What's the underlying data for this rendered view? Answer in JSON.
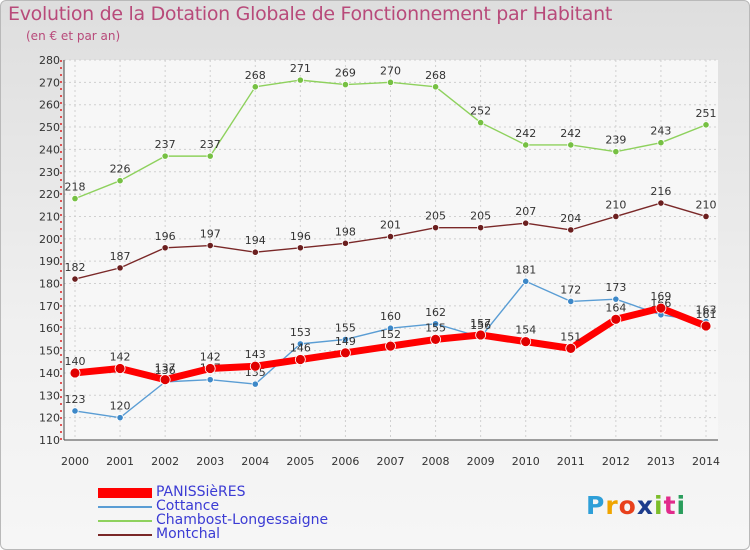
{
  "title": "Evolution de la Dotation Globale de Fonctionnement par Habitant",
  "subtitle": "(en € et par an)",
  "brand": "Proxiti",
  "brand_colors": [
    "#2e9fd8",
    "#f0a500",
    "#e8401c",
    "#1d3c8c",
    "#7cbd2a",
    "#e12b8b",
    "#2a9d5c"
  ],
  "chart_data": {
    "type": "line",
    "title": "Evolution de la Dotation Globale de Fonctionnement par Habitant",
    "subtitle": "(en € et par an)",
    "xlabel": "",
    "ylabel": "",
    "ylim": [
      110,
      280
    ],
    "ytick_step": 10,
    "grid": true,
    "legend_position": "bottom-left",
    "categories": [
      "2000",
      "2001",
      "2002",
      "2003",
      "2004",
      "2005",
      "2006",
      "2007",
      "2008",
      "2009",
      "2010",
      "2011",
      "2012",
      "2013",
      "2014"
    ],
    "series": [
      {
        "name": "Chambost-Longessaigne",
        "color": "#8ed15d",
        "marker": "#76c043",
        "labels": [
          "218",
          "226",
          "237",
          "237",
          "268",
          "271",
          "269",
          "270",
          "268",
          "252",
          "242",
          "242",
          "239",
          "243",
          "251"
        ],
        "values": [
          218,
          226,
          237,
          237,
          268,
          271,
          269,
          270,
          268,
          252,
          242,
          242,
          239,
          243,
          251
        ]
      },
      {
        "name": "Montchal",
        "color": "#7a2828",
        "marker": "#6b1f1f",
        "labels": [
          "182",
          "187",
          "196",
          "197",
          "194",
          "196",
          "198",
          "201",
          "205",
          "205",
          "207",
          "204",
          "210",
          "216",
          "210"
        ],
        "values": [
          182,
          187,
          196,
          197,
          194,
          196,
          198,
          201,
          205,
          205,
          207,
          204,
          210,
          216,
          210
        ]
      },
      {
        "name": "Cottance",
        "color": "#5a9dd4",
        "marker": "#3d88c8",
        "labels": [
          "123",
          "120",
          "136",
          "137",
          "135",
          "153",
          "155",
          "160",
          "162",
          "156",
          "181",
          "172",
          "173",
          "166",
          "163"
        ],
        "values": [
          123,
          120,
          136,
          137,
          135,
          153,
          155,
          160,
          162,
          156,
          181,
          172,
          173,
          166,
          163
        ]
      },
      {
        "name": "PANISSièRES",
        "color": "#ff0000",
        "marker": "#e00000",
        "labels": [
          "140",
          "142",
          "137",
          "142",
          "143",
          "146",
          "149",
          "152",
          "155",
          "157",
          "154",
          "151",
          "164",
          "169",
          "161"
        ],
        "values": [
          140,
          142,
          137,
          142,
          143,
          146,
          149,
          152,
          155,
          157,
          154,
          151,
          164,
          169,
          161
        ]
      }
    ],
    "legend_order": [
      "PANISSièRES",
      "Cottance",
      "Chambost-Longessaigne",
      "Montchal"
    ]
  }
}
